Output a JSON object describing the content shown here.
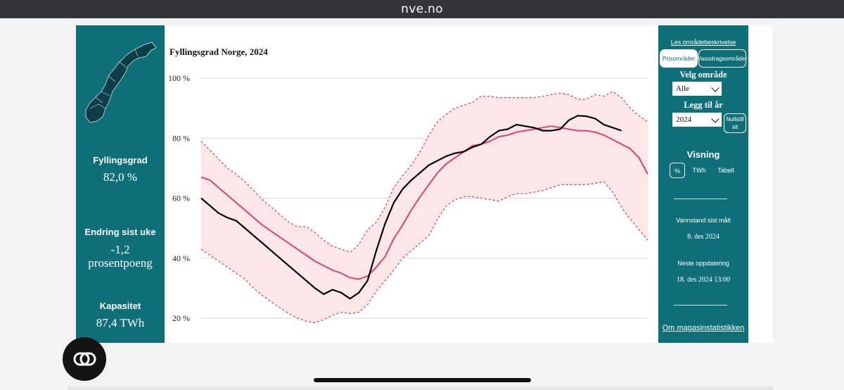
{
  "browser": {
    "url": "nve.no"
  },
  "left_panel": {
    "map_icon": "norway-map-icon",
    "fyllingsgrad_label": "Fyllingsgrad",
    "fyllingsgrad_value": "82,0 %",
    "endring_label": "Endring sist uke",
    "endring_value": "-1,2",
    "endring_unit": "prosentpoeng",
    "kapasitet_label": "Kapasitet",
    "kapasitet_value": "87,4 TWh"
  },
  "chart_data": {
    "type": "line",
    "title": "Fyllingsgrad Norge, 2024",
    "ytick_labels": [
      "20 %",
      "40 %",
      "60 %",
      "80 %",
      "100 %"
    ],
    "ylim": [
      20,
      100
    ],
    "x_unit": "week",
    "xlim": [
      1,
      52
    ],
    "grid": true,
    "series": [
      {
        "key": "year_2024",
        "color": "#000000",
        "style": "solid",
        "x": [
          1,
          2,
          3,
          4,
          5,
          6,
          7,
          8,
          9,
          10,
          11,
          12,
          13,
          14,
          15,
          16,
          17,
          18,
          19,
          20,
          21,
          22,
          23,
          24,
          25,
          26,
          27,
          28,
          29,
          30,
          31,
          32,
          33,
          34,
          35,
          36,
          37,
          38,
          39,
          40,
          41,
          42,
          43,
          44,
          45,
          46,
          47,
          48,
          49
        ],
        "values": [
          60,
          57.5,
          55,
          53.5,
          52.5,
          50,
          47.5,
          45,
          42.5,
          40,
          37.5,
          35,
          32.5,
          30,
          28,
          29.5,
          28.5,
          26.5,
          28.5,
          32.5,
          42.5,
          51.5,
          58.5,
          63,
          66,
          68.5,
          71,
          72.5,
          74,
          75,
          75.5,
          77,
          78,
          80.5,
          82.5,
          83,
          84.5,
          84,
          83.5,
          82.5,
          82.5,
          83,
          86,
          87.5,
          87.3,
          86.5,
          84.5,
          83.5,
          82.5
        ]
      },
      {
        "key": "median",
        "color": "#d6456a",
        "style": "solid",
        "x": [
          1,
          2,
          3,
          4,
          5,
          6,
          7,
          8,
          9,
          10,
          11,
          12,
          13,
          14,
          15,
          16,
          17,
          18,
          19,
          20,
          21,
          22,
          23,
          24,
          25,
          26,
          27,
          28,
          29,
          30,
          31,
          32,
          33,
          34,
          35,
          36,
          37,
          38,
          39,
          40,
          41,
          42,
          43,
          44,
          45,
          46,
          47,
          48,
          49,
          50,
          51,
          52
        ],
        "values": [
          67,
          66,
          63.5,
          61,
          58.5,
          56,
          53.5,
          51,
          49,
          47,
          45,
          43,
          41,
          39,
          37.5,
          36,
          35,
          33.5,
          33,
          34,
          37,
          40.5,
          46.5,
          51,
          56,
          60.5,
          64.5,
          68.5,
          71.5,
          73.5,
          75.5,
          77.5,
          78,
          79,
          80.5,
          81,
          82,
          82.5,
          83,
          83.5,
          84,
          83.5,
          83,
          82.5,
          82.5,
          82,
          81,
          79.5,
          78,
          76.5,
          73.5,
          68
        ]
      },
      {
        "key": "max",
        "color": "#d6456a",
        "style": "dashed",
        "x": [
          1,
          2,
          3,
          4,
          5,
          6,
          7,
          8,
          9,
          10,
          11,
          12,
          13,
          14,
          15,
          16,
          17,
          18,
          19,
          20,
          21,
          22,
          23,
          24,
          25,
          26,
          27,
          28,
          29,
          30,
          31,
          32,
          33,
          34,
          35,
          36,
          37,
          38,
          39,
          40,
          41,
          42,
          43,
          44,
          45,
          46,
          47,
          48,
          49,
          50,
          51,
          52
        ],
        "values": [
          79,
          76,
          73,
          70,
          68,
          65.5,
          62.5,
          59.5,
          57,
          54.5,
          52,
          50.5,
          50.5,
          48.5,
          46,
          44,
          43,
          42,
          44.5,
          49.5,
          52,
          57,
          63.5,
          67.5,
          71,
          75.5,
          81,
          85.5,
          88,
          90,
          91,
          92,
          94,
          94,
          93.5,
          93.5,
          93.5,
          93.5,
          93.5,
          94,
          94.5,
          95,
          94.5,
          93,
          93,
          94.5,
          94,
          95.5,
          93.5,
          90,
          87.5,
          85.5
        ]
      },
      {
        "key": "min",
        "color": "#d6456a",
        "style": "dashed",
        "x": [
          1,
          2,
          3,
          4,
          5,
          6,
          7,
          8,
          9,
          10,
          11,
          12,
          13,
          14,
          15,
          16,
          17,
          18,
          19,
          20,
          21,
          22,
          23,
          24,
          25,
          26,
          27,
          28,
          29,
          30,
          31,
          32,
          33,
          34,
          35,
          36,
          37,
          38,
          39,
          40,
          41,
          42,
          43,
          44,
          45,
          46,
          47,
          48,
          49,
          50,
          51,
          52
        ],
        "values": [
          43,
          41,
          39,
          37,
          35,
          33,
          30,
          27.5,
          25.5,
          23.5,
          21.5,
          20,
          19,
          18.5,
          19.5,
          21,
          22,
          21.5,
          22,
          24.5,
          29,
          32.5,
          36,
          40,
          42.5,
          45,
          47.5,
          53,
          57.5,
          59.5,
          60.5,
          60.5,
          60,
          59.5,
          59,
          60.5,
          61.5,
          61.5,
          62,
          62.5,
          63.5,
          64.5,
          64.5,
          64.5,
          64.5,
          65,
          65.5,
          62,
          57,
          53,
          49.5,
          46
        ]
      }
    ]
  },
  "right_panel": {
    "omrade_link": "Les områdebeskrivelse",
    "tabs": {
      "prisomrader": "Prisområder",
      "vassdrag": "Vassdragsområder"
    },
    "velg_omrade_label": "Velg område",
    "velg_omrade_value": "Alle",
    "legg_til_ar_label": "Legg til år",
    "legg_til_ar_value": "2024",
    "nullstill_line1": "Nullstill",
    "nullstill_line2": "alt",
    "visning_label": "Visning",
    "visning_options": [
      "%",
      "TWh",
      "Tabell"
    ],
    "vannstand_label": "Vannstand sist målt",
    "vannstand_value": "8. des 2024",
    "neste_label": "Neste oppdatering",
    "neste_value": "18. des 2024 13:00",
    "magasin_link": "Om magasinstatistikken"
  }
}
